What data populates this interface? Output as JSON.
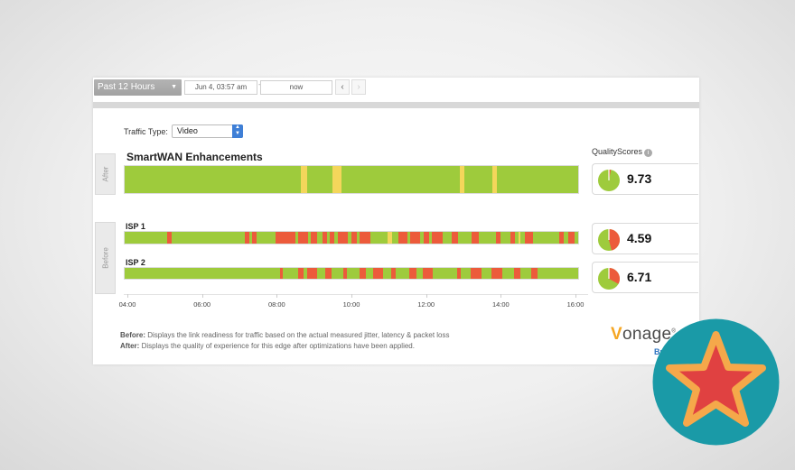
{
  "toolbar": {
    "range_label": "Past 12 Hours",
    "start_date": "Jun 4, 03:57 am",
    "separator": "-",
    "end_date": "now",
    "prev_icon": "chevron-left-icon",
    "next_icon": "chevron-right-icon"
  },
  "traffic": {
    "label": "Traffic Type:",
    "value": "Video"
  },
  "tabs": {
    "after": "After",
    "before": "Before"
  },
  "tracks": {
    "smartwan": {
      "title": "SmartWAN Enhancements",
      "segments": [
        {
          "from": 0.389,
          "to": 0.403,
          "color": "yellow"
        },
        {
          "from": 0.459,
          "to": 0.478,
          "color": "yellow"
        },
        {
          "from": 0.74,
          "to": 0.75,
          "color": "yellow"
        },
        {
          "from": 0.811,
          "to": 0.821,
          "color": "yellow"
        }
      ]
    },
    "isp1": {
      "title": "ISP 1",
      "segments": [
        {
          "from": 0.094,
          "to": 0.104,
          "color": "red"
        },
        {
          "from": 0.265,
          "to": 0.275,
          "color": "red"
        },
        {
          "from": 0.28,
          "to": 0.29,
          "color": "red"
        },
        {
          "from": 0.332,
          "to": 0.377,
          "color": "red"
        },
        {
          "from": 0.382,
          "to": 0.405,
          "color": "red"
        },
        {
          "from": 0.41,
          "to": 0.425,
          "color": "red"
        },
        {
          "from": 0.436,
          "to": 0.447,
          "color": "red"
        },
        {
          "from": 0.452,
          "to": 0.463,
          "color": "red"
        },
        {
          "from": 0.47,
          "to": 0.492,
          "color": "red"
        },
        {
          "from": 0.5,
          "to": 0.512,
          "color": "red"
        },
        {
          "from": 0.518,
          "to": 0.541,
          "color": "red"
        },
        {
          "from": 0.58,
          "to": 0.59,
          "color": "yellow"
        },
        {
          "from": 0.604,
          "to": 0.624,
          "color": "red"
        },
        {
          "from": 0.629,
          "to": 0.651,
          "color": "red"
        },
        {
          "from": 0.66,
          "to": 0.672,
          "color": "red"
        },
        {
          "from": 0.678,
          "to": 0.702,
          "color": "red"
        },
        {
          "from": 0.722,
          "to": 0.735,
          "color": "red"
        },
        {
          "from": 0.765,
          "to": 0.78,
          "color": "red"
        },
        {
          "from": 0.818,
          "to": 0.828,
          "color": "red"
        },
        {
          "from": 0.85,
          "to": 0.861,
          "color": "red"
        },
        {
          "from": 0.868,
          "to": 0.872,
          "color": "yellow"
        },
        {
          "from": 0.882,
          "to": 0.901,
          "color": "red"
        },
        {
          "from": 0.959,
          "to": 0.969,
          "color": "red"
        },
        {
          "from": 0.979,
          "to": 0.993,
          "color": "red"
        }
      ]
    },
    "isp2": {
      "title": "ISP 2",
      "segments": [
        {
          "from": 0.343,
          "to": 0.349,
          "color": "red"
        },
        {
          "from": 0.383,
          "to": 0.394,
          "color": "red"
        },
        {
          "from": 0.403,
          "to": 0.425,
          "color": "red"
        },
        {
          "from": 0.442,
          "to": 0.457,
          "color": "red"
        },
        {
          "from": 0.483,
          "to": 0.49,
          "color": "red"
        },
        {
          "from": 0.518,
          "to": 0.531,
          "color": "red"
        },
        {
          "from": 0.547,
          "to": 0.57,
          "color": "red"
        },
        {
          "from": 0.587,
          "to": 0.598,
          "color": "red"
        },
        {
          "from": 0.628,
          "to": 0.643,
          "color": "red"
        },
        {
          "from": 0.657,
          "to": 0.68,
          "color": "red"
        },
        {
          "from": 0.733,
          "to": 0.742,
          "color": "red"
        },
        {
          "from": 0.762,
          "to": 0.786,
          "color": "red"
        },
        {
          "from": 0.808,
          "to": 0.832,
          "color": "red"
        },
        {
          "from": 0.859,
          "to": 0.873,
          "color": "red"
        },
        {
          "from": 0.897,
          "to": 0.91,
          "color": "red"
        }
      ]
    }
  },
  "axis": {
    "ticks": [
      "04:00",
      "06:00",
      "08:00",
      "10:00",
      "12:00",
      "14:00",
      "16:00"
    ]
  },
  "quality": {
    "title": "QualityScores",
    "info_icon": "info-icon",
    "scores": [
      {
        "value": "9.73",
        "bad_fraction": 0.03
      },
      {
        "value": "4.59",
        "bad_fraction": 0.46
      },
      {
        "value": "6.71",
        "bad_fraction": 0.33
      }
    ]
  },
  "notes": {
    "before_label": "Before:",
    "before_text": " Displays the link readiness for traffic based on the actual measured jitter, latency & packet loss",
    "after_label": "After:",
    "after_text": " Displays the quality of experience for this edge after optimizations have been applied."
  },
  "logo": {
    "v": "V",
    "rest": "onage",
    "reg": "®",
    "sub": "Business"
  },
  "colors": {
    "good": "#9ecb3c",
    "bad": "#ec5b3b",
    "warn": "#f4d65b",
    "badge_circle": "#1a9aa7",
    "badge_star": "#e04141",
    "badge_star_outline": "#f5a84a"
  },
  "badge": {
    "icon": "star-icon"
  }
}
